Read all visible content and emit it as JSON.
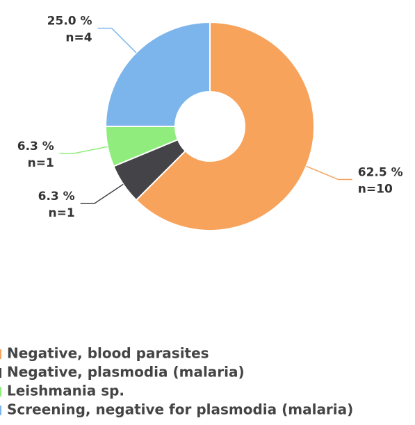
{
  "chart_data": {
    "type": "donut",
    "categories": [
      "Negative, blood parasites",
      "Negative, plasmodia (malaria)",
      "Leishmania sp.",
      "Screening, negative for plasmodia (malaria)"
    ],
    "values": [
      10,
      1,
      1,
      4
    ],
    "value_labels": [
      "n=10",
      "n=1",
      "n=1",
      "n=4"
    ],
    "percent_labels": [
      "62.5 %",
      "6.3 %",
      "6.3 %",
      "25.0 %"
    ],
    "colors": [
      "#f7a35c",
      "#434348",
      "#90ed7d",
      "#7cb5ec"
    ],
    "legend": "bottom"
  }
}
